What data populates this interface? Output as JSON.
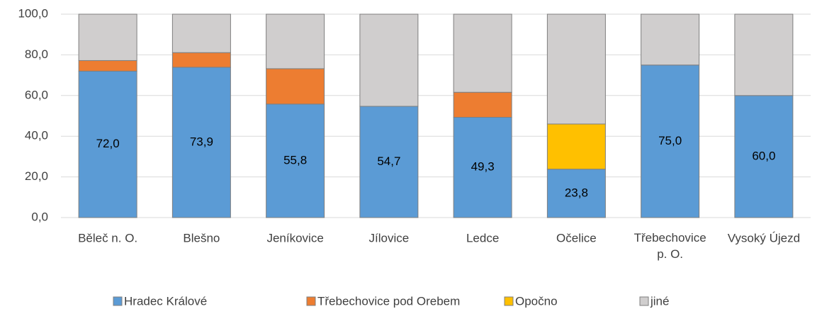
{
  "chart_data": {
    "type": "stacked_bar",
    "categories": [
      "Běleč n. O.",
      "Blešno",
      "Jeníkovice",
      "Jílovice",
      "Ledce",
      "Očelice",
      "Třebechovice p. O.",
      "Vysoký Újezd"
    ],
    "series": [
      {
        "name": "Hradec Králové",
        "color": "#5b9bd5",
        "values": [
          72.0,
          73.9,
          55.8,
          54.7,
          49.3,
          23.8,
          75.0,
          60.0
        ],
        "value_labels": [
          "72,0",
          "73,9",
          "55,8",
          "54,7",
          "49,3",
          "23,8",
          "75,0",
          "60,0"
        ]
      },
      {
        "name": "Třebechovice pod Orebem",
        "color": "#ed7d31",
        "values": [
          5.2,
          7.2,
          17.4,
          0,
          12.3,
          0,
          0,
          0
        ]
      },
      {
        "name": "Opočno",
        "color": "#ffc000",
        "values": [
          0,
          0,
          0,
          0,
          0,
          22.2,
          0,
          0
        ]
      },
      {
        "name": "jiné",
        "color": "#d0cece",
        "values": [
          22.8,
          18.9,
          26.8,
          45.3,
          38.4,
          54.0,
          25.0,
          40.0
        ]
      }
    ],
    "ylim": [
      0,
      100
    ],
    "yticks": [
      {
        "value": 0,
        "label": "0,0"
      },
      {
        "value": 20,
        "label": "20,0"
      },
      {
        "value": 40,
        "label": "40,0"
      },
      {
        "value": 60,
        "label": "60,0"
      },
      {
        "value": 80,
        "label": "80,0"
      },
      {
        "value": 100,
        "label": "100,0"
      }
    ],
    "grid": true,
    "legend": "bottom"
  }
}
